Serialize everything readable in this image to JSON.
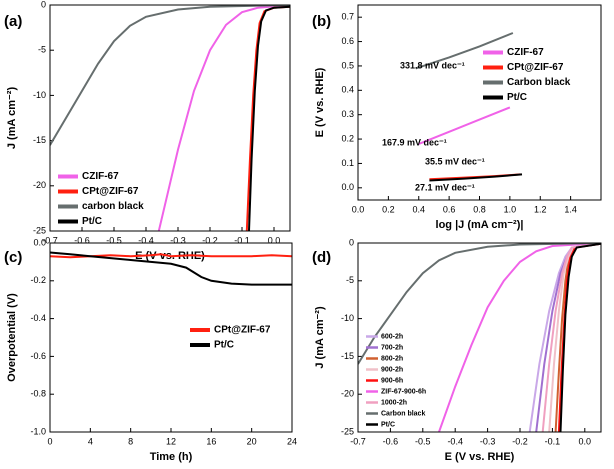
{
  "chart_data": [
    {
      "type": "line",
      "label": "(a)",
      "xlabel": "E (V vs. RHE)",
      "ylabel": "J (mA cm⁻²)",
      "xlim": [
        -0.7,
        0.05
      ],
      "ylim": [
        -25,
        0
      ],
      "xticks": [
        -0.7,
        -0.6,
        -0.5,
        -0.4,
        -0.3,
        -0.2,
        -0.1,
        {
          "value": 0,
          "label": "0.0"
        }
      ],
      "yticks": [
        0,
        -5,
        -10,
        -15,
        -20,
        -25
      ],
      "legend": "lower left",
      "series": [
        {
          "name": "CZIF-67",
          "color": "#f062e8",
          "x": [
            -0.36,
            -0.33,
            -0.3,
            -0.25,
            -0.2,
            -0.15,
            -0.1,
            -0.05,
            0.05
          ],
          "values": [
            -25,
            -20.5,
            -16,
            -9.5,
            -5,
            -2.2,
            -0.8,
            -0.3,
            0
          ]
        },
        {
          "name": "CPt@ZIF-67",
          "color": "#ff2010",
          "x": [
            -0.085,
            -0.075,
            -0.065,
            -0.055,
            -0.045,
            -0.03,
            0,
            0.05
          ],
          "values": [
            -25,
            -17,
            -10,
            -5,
            -2,
            -0.7,
            -0.3,
            -0.2
          ]
        },
        {
          "name": "carbon black",
          "color": "#666e6e",
          "x": [
            -0.7,
            -0.65,
            -0.6,
            -0.55,
            -0.5,
            -0.45,
            -0.4,
            -0.3,
            -0.2,
            0.05
          ],
          "values": [
            -15.5,
            -12.5,
            -9.5,
            -6.5,
            -4,
            -2.3,
            -1.3,
            -0.5,
            -0.2,
            0
          ]
        },
        {
          "name": "Pt/C",
          "color": "#000000",
          "x": [
            -0.078,
            -0.07,
            -0.06,
            -0.05,
            -0.04,
            -0.025,
            0,
            0.05
          ],
          "values": [
            -25,
            -17,
            -9.5,
            -4.5,
            -1.8,
            -0.6,
            -0.3,
            -0.2
          ]
        }
      ]
    },
    {
      "type": "line",
      "label": "(b)",
      "xlabel": "log |J (mA cm⁻²)|",
      "ylabel": "E (V vs. RHE)",
      "xlim": [
        0,
        1.6
      ],
      "ylim": [
        -0.05,
        0.75
      ],
      "xticks": [
        {
          "value": 0,
          "label": "0.0"
        },
        0.2,
        0.4,
        0.6,
        0.8,
        {
          "value": 1,
          "label": "1.0"
        },
        1.2,
        1.4
      ],
      "yticks": [
        {
          "value": 0,
          "label": "0.0"
        },
        0.1,
        0.2,
        0.3,
        0.4,
        0.5,
        0.6,
        0.7
      ],
      "legend": "upper right",
      "annotations": [
        "331.8 mV dec⁻¹",
        "167.9 mV dec⁻¹",
        "35.5 mV dec⁻¹",
        "27.1 mV dec⁻¹"
      ],
      "series": [
        {
          "name": "CZIF-67",
          "color": "#f062e8",
          "x": [
            0.4,
            0.6,
            0.8,
            1.0
          ],
          "values": [
            0.18,
            0.23,
            0.28,
            0.33
          ]
        },
        {
          "name": "CPt@ZIF-67",
          "color": "#ff2010",
          "x": [
            0.47,
            0.7,
            0.9,
            1.07
          ],
          "values": [
            0.035,
            0.042,
            0.048,
            0.055
          ]
        },
        {
          "name": "Carbon black",
          "color": "#666e6e",
          "x": [
            0.38,
            0.6,
            0.8,
            1.02
          ],
          "values": [
            0.49,
            0.535,
            0.58,
            0.635
          ]
        },
        {
          "name": "Pt/C",
          "color": "#000000",
          "x": [
            0.47,
            0.7,
            0.9,
            1.08
          ],
          "values": [
            0.03,
            0.038,
            0.046,
            0.055
          ]
        }
      ]
    },
    {
      "type": "line",
      "label": "(c)",
      "xlabel": "Time (h)",
      "ylabel": "Overpotential (V)",
      "xlim": [
        0,
        24
      ],
      "ylim": [
        -1,
        0
      ],
      "xticks": [
        0,
        4,
        8,
        12,
        16,
        20,
        24
      ],
      "yticks": [
        {
          "value": 0,
          "label": "0.0"
        },
        -0.2,
        -0.4,
        -0.6,
        -0.8,
        {
          "value": -1,
          "label": "-1.0"
        }
      ],
      "legend": "center right",
      "series": [
        {
          "name": "CPt@ZIF-67",
          "color": "#ff2010",
          "x": [
            0,
            2,
            4,
            6,
            8,
            10,
            11,
            12,
            14,
            16,
            18,
            20,
            22,
            24
          ],
          "values": [
            -0.07,
            -0.075,
            -0.07,
            -0.065,
            -0.07,
            -0.065,
            -0.06,
            -0.07,
            -0.065,
            -0.07,
            -0.07,
            -0.07,
            -0.065,
            -0.07
          ]
        },
        {
          "name": "Pt/C",
          "color": "#000000",
          "x": [
            0,
            2,
            4,
            6,
            8,
            10,
            12,
            13.5,
            15,
            16,
            18,
            20,
            22,
            24
          ],
          "values": [
            -0.05,
            -0.06,
            -0.07,
            -0.08,
            -0.09,
            -0.1,
            -0.11,
            -0.13,
            -0.18,
            -0.2,
            -0.215,
            -0.22,
            -0.22,
            -0.22
          ]
        }
      ]
    },
    {
      "type": "line",
      "label": "(d)",
      "xlabel": "E (V vs. RHE)",
      "ylabel": "J (mA cm⁻²)",
      "xlim": [
        -0.7,
        0.05
      ],
      "ylim": [
        -25,
        0
      ],
      "xticks": [
        -0.7,
        -0.6,
        -0.5,
        -0.4,
        -0.3,
        -0.2,
        -0.1,
        {
          "value": 0,
          "label": "0.0"
        }
      ],
      "yticks": [
        0,
        -5,
        -10,
        -15,
        -20,
        -25
      ],
      "legend": "lower left",
      "series": [
        {
          "name": "600-2h",
          "color": "#c9a8e8",
          "x": [
            -0.17,
            -0.14,
            -0.11,
            -0.08,
            -0.06,
            -0.04,
            0.05
          ],
          "values": [
            -25,
            -16,
            -9,
            -4,
            -1.8,
            -0.6,
            -0.1
          ]
        },
        {
          "name": "700-2h",
          "color": "#a070d0",
          "x": [
            -0.15,
            -0.125,
            -0.1,
            -0.075,
            -0.055,
            -0.035,
            0.05
          ],
          "values": [
            -25,
            -16,
            -9,
            -4,
            -1.8,
            -0.6,
            -0.1
          ]
        },
        {
          "name": "800-2h",
          "color": "#d06030",
          "x": [
            -0.09,
            -0.08,
            -0.07,
            -0.06,
            -0.05,
            -0.035,
            0.05
          ],
          "values": [
            -25,
            -17,
            -10,
            -5,
            -2,
            -0.6,
            -0.1
          ]
        },
        {
          "name": "900-2h",
          "color": "#f0c0c8",
          "x": [
            -0.11,
            -0.095,
            -0.08,
            -0.065,
            -0.05,
            -0.035,
            0.05
          ],
          "values": [
            -25,
            -16,
            -9,
            -4,
            -1.8,
            -0.6,
            -0.1
          ]
        },
        {
          "name": "900-6h",
          "color": "#ff1010",
          "x": [
            -0.08,
            -0.072,
            -0.063,
            -0.055,
            -0.045,
            -0.03,
            0.05
          ],
          "values": [
            -25,
            -17,
            -10,
            -5,
            -2,
            -0.6,
            -0.1
          ]
        },
        {
          "name": "ZIF-67-900-6h",
          "color": "#f062e8",
          "x": [
            -0.45,
            -0.4,
            -0.35,
            -0.3,
            -0.25,
            -0.2,
            -0.15,
            -0.1,
            0.05
          ],
          "values": [
            -25,
            -19,
            -13.5,
            -8.5,
            -5,
            -2.5,
            -1.1,
            -0.4,
            0
          ]
        },
        {
          "name": "1000-2h",
          "color": "#f0a0c0",
          "x": [
            -0.13,
            -0.11,
            -0.09,
            -0.07,
            -0.055,
            -0.04,
            0.05
          ],
          "values": [
            -25,
            -16,
            -9,
            -4,
            -1.8,
            -0.6,
            -0.1
          ]
        },
        {
          "name": "Carbon black",
          "color": "#666e6e",
          "x": [
            -0.7,
            -0.65,
            -0.6,
            -0.55,
            -0.5,
            -0.45,
            -0.4,
            -0.3,
            -0.2,
            0.05
          ],
          "values": [
            -16,
            -12.5,
            -9.5,
            -6.5,
            -4,
            -2.3,
            -1.3,
            -0.5,
            -0.2,
            0
          ]
        },
        {
          "name": "Pt/C",
          "color": "#000000",
          "x": [
            -0.075,
            -0.068,
            -0.06,
            -0.05,
            -0.04,
            -0.025,
            0.05
          ],
          "values": [
            -25,
            -17,
            -9.5,
            -4.5,
            -1.8,
            -0.6,
            -0.1
          ]
        }
      ]
    }
  ]
}
